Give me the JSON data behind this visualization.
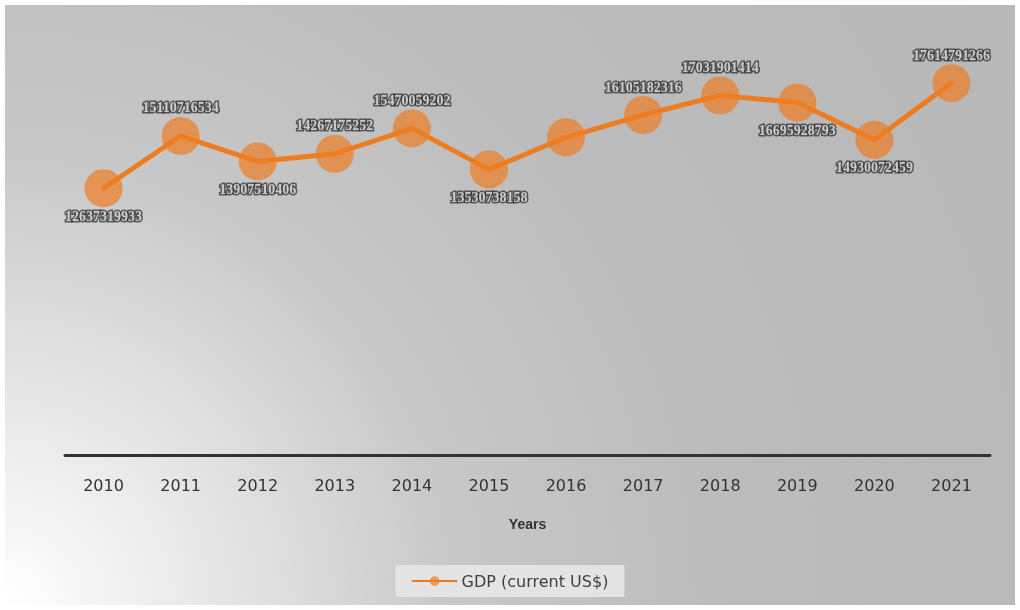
{
  "chart_data": {
    "type": "line",
    "xlabel": "Years",
    "categories": [
      "2010",
      "2011",
      "2012",
      "2013",
      "2014",
      "2015",
      "2016",
      "2017",
      "2018",
      "2019",
      "2020",
      "2021"
    ],
    "series": [
      {
        "name": "GDP (current US$)",
        "color": "#ee7d22",
        "values": [
          12637319933,
          15110716534,
          13907510406,
          14267175252,
          15470059202,
          13530738158,
          15050000000,
          16105182316,
          17031901414,
          16695928793,
          14930072459,
          17614791266
        ],
        "value_labels": [
          "12637319933",
          "15110716534",
          "13907510406",
          "14267175252",
          "15470059202",
          "13530738158",
          null,
          "16105182316",
          "17031901414",
          "16695928793",
          "14930072459",
          "17614791266"
        ]
      }
    ],
    "tick_labels": "x",
    "grid": false,
    "legend": "bottom",
    "marker": "circle",
    "line_style": "solid"
  }
}
